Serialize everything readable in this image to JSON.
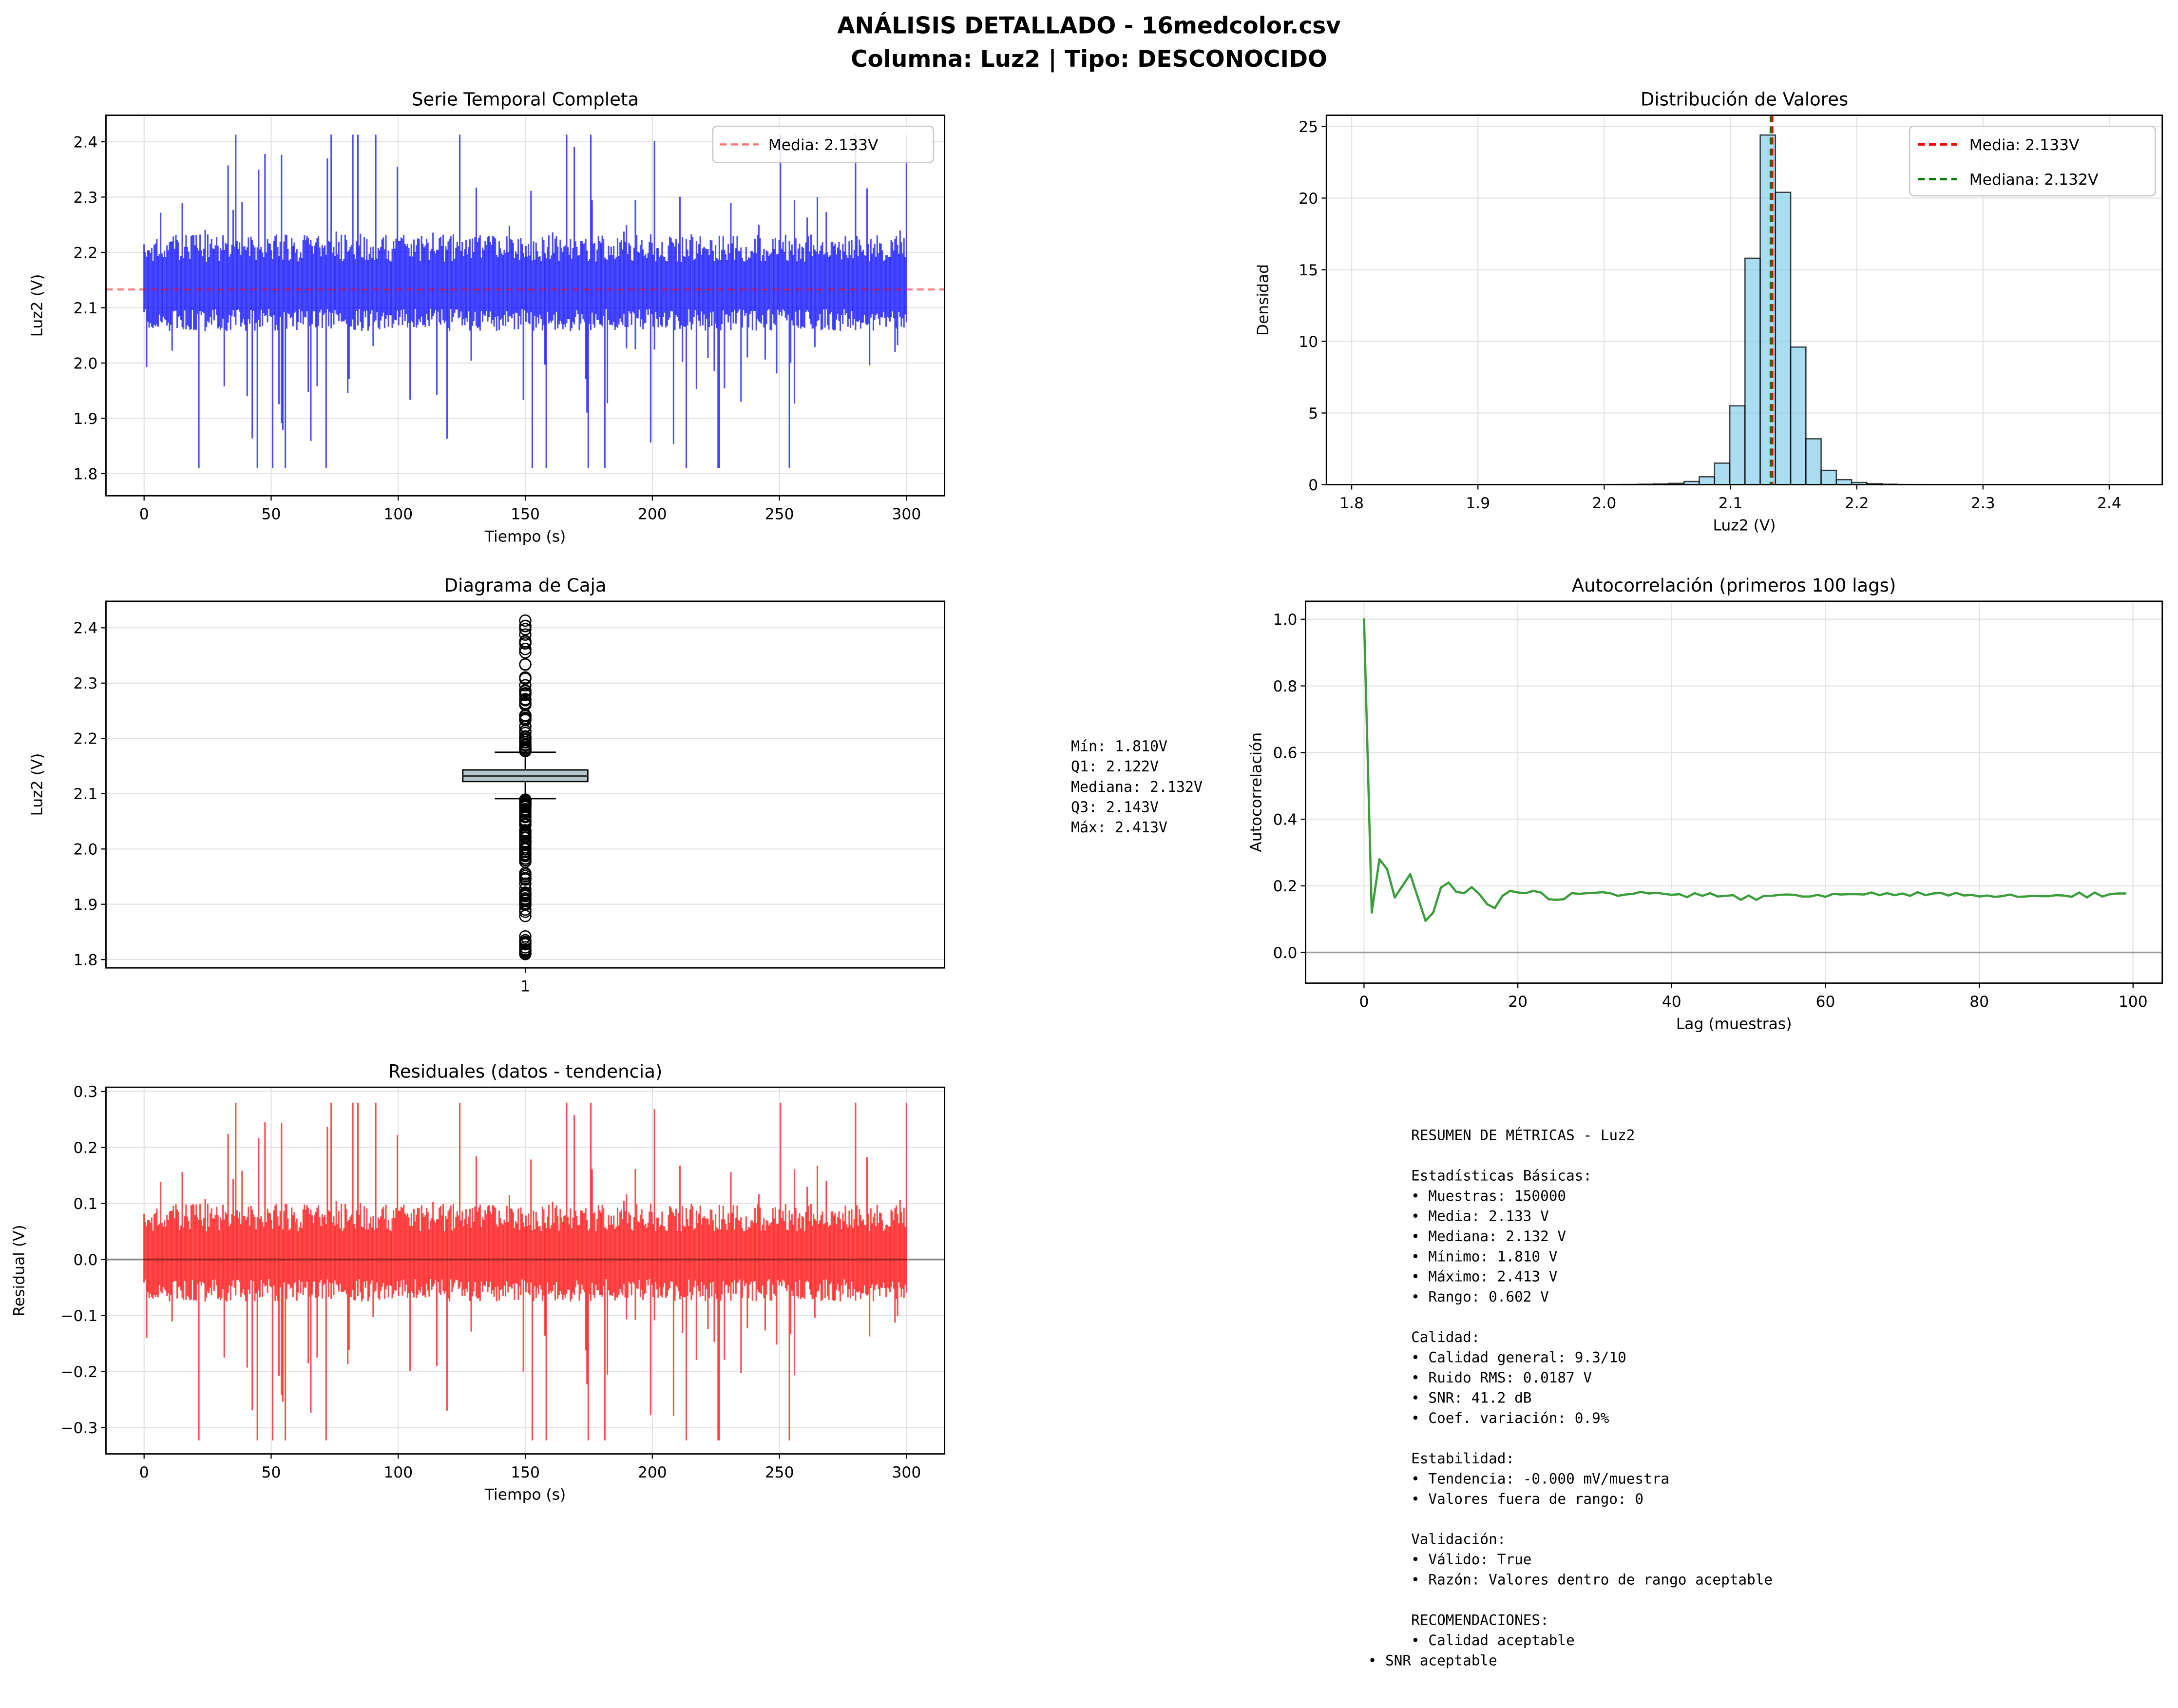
{
  "figure": {
    "title_line1": "ANÁLISIS DETALLADO - 16medcolor.csv",
    "title_line2": "Columna: Luz2 | Tipo: DESCONOCIDO"
  },
  "chart_data": [
    {
      "type": "line",
      "title": "Serie Temporal Completa",
      "xlabel": "Tiempo (s)",
      "ylabel": "Luz2 (V)",
      "xlim": [
        -15,
        315
      ],
      "ylim": [
        1.76,
        2.448
      ],
      "xticks": [
        0,
        50,
        100,
        150,
        200,
        250,
        300
      ],
      "xtick_labels": [
        "0",
        "50",
        "100",
        "150",
        "200",
        "250",
        "300"
      ],
      "yticks": [
        1.8,
        1.9,
        2.0,
        2.1,
        2.2,
        2.3,
        2.4
      ],
      "ytick_labels": [
        "1.8",
        "1.9",
        "2.0",
        "2.1",
        "2.2",
        "2.3",
        "2.4"
      ],
      "grid": true,
      "series_color": "#0000ff",
      "samples": 150000,
      "duration_s": 300,
      "mean": 2.133,
      "min": 1.81,
      "max": 2.413,
      "hline": {
        "value": 2.133,
        "color": "#ff0000",
        "style": "dashed"
      },
      "legend": {
        "position": "upper right",
        "entries": [
          {
            "label": "Media: 2.133V",
            "color": "#ff7070"
          }
        ]
      }
    },
    {
      "type": "bar",
      "title": "Distribución de Valores",
      "xlabel": "Luz2 (V)",
      "ylabel": "Densidad",
      "xlim": [
        1.78,
        2.442
      ],
      "ylim": [
        0,
        25.78
      ],
      "xticks": [
        1.8,
        1.9,
        2.0,
        2.1,
        2.2,
        2.3,
        2.4
      ],
      "xtick_labels": [
        "1.8",
        "1.9",
        "2.0",
        "2.1",
        "2.2",
        "2.3",
        "2.4"
      ],
      "yticks": [
        0,
        5,
        10,
        15,
        20,
        25
      ],
      "ytick_labels": [
        "0",
        "5",
        "10",
        "15",
        "20",
        "25"
      ],
      "grid": true,
      "bar_color": "#87ceeb",
      "bin_range": [
        1.81,
        2.413
      ],
      "bins": 50,
      "density": [
        0.005,
        0.005,
        0.004,
        0.004,
        0.004,
        0.004,
        0.005,
        0.004,
        0.004,
        0.005,
        0.005,
        0.005,
        0.006,
        0.006,
        0.008,
        0.01,
        0.012,
        0.015,
        0.03,
        0.05,
        0.09,
        0.22,
        0.55,
        1.5,
        5.5,
        15.8,
        24.4,
        20.4,
        9.6,
        3.2,
        1.0,
        0.35,
        0.15,
        0.07,
        0.03,
        0.012,
        0.01,
        0.008,
        0.006,
        0.005,
        0.005,
        0.004,
        0.004,
        0.004,
        0.004,
        0.004,
        0.003,
        0.003,
        0.003,
        0.004
      ],
      "vlines": [
        {
          "label": "Media: 2.133V",
          "value": 2.133,
          "color": "#ff0000"
        },
        {
          "label": "Mediana: 2.132V",
          "value": 2.132,
          "color": "#008000"
        }
      ],
      "legend": {
        "position": "upper right"
      }
    },
    {
      "type": "box",
      "title": "Diagrama de Caja",
      "xlabel": "",
      "ylabel": "Luz2 (V)",
      "xlim": [
        0.5,
        1.5
      ],
      "ylim": [
        1.785,
        2.448
      ],
      "xticks": [
        1
      ],
      "xtick_labels": [
        "1"
      ],
      "yticks": [
        1.8,
        1.9,
        2.0,
        2.1,
        2.2,
        2.3,
        2.4
      ],
      "ytick_labels": [
        "1.8",
        "1.9",
        "2.0",
        "2.1",
        "2.2",
        "2.3",
        "2.4"
      ],
      "grid": true,
      "box_color": "#b4c8cc",
      "stats": {
        "min": 1.81,
        "q1": 2.122,
        "median": 2.132,
        "q3": 2.143,
        "max": 2.413,
        "whisker_low": 2.091,
        "whisker_high": 2.175
      },
      "stats_text": [
        "Mín: 1.810V",
        "Q1: 2.122V",
        "Mediana: 2.132V",
        "Q3: 2.143V",
        "Máx: 2.413V"
      ]
    },
    {
      "type": "line",
      "title": "Autocorrelación (primeros 100 lags)",
      "xlabel": "Lag (muestras)",
      "ylabel": "Autocorrelación",
      "xlim": [
        -7.6,
        103.8
      ],
      "ylim": [
        -0.092,
        1.054
      ],
      "xticks": [
        0,
        20,
        40,
        60,
        80,
        100
      ],
      "xtick_labels": [
        "0",
        "20",
        "40",
        "60",
        "80",
        "100"
      ],
      "yticks": [
        0.0,
        0.2,
        0.4,
        0.6,
        0.8,
        1.0
      ],
      "ytick_labels": [
        "0.0",
        "0.2",
        "0.4",
        "0.6",
        "0.8",
        "1.0"
      ],
      "grid": true,
      "series_color": "#3a9e3a",
      "hline": {
        "value": 0,
        "color": "#888888"
      },
      "values": [
        1.0,
        0.12,
        0.28,
        0.25,
        0.165,
        0.2,
        0.235,
        0.165,
        0.095,
        0.12,
        0.195,
        0.21,
        0.182,
        0.178,
        0.196,
        0.175,
        0.145,
        0.133,
        0.17,
        0.185,
        0.18,
        0.178,
        0.185,
        0.18,
        0.16,
        0.158,
        0.16,
        0.178,
        0.176,
        0.178,
        0.179,
        0.181,
        0.178,
        0.17,
        0.174,
        0.176,
        0.182,
        0.177,
        0.179,
        0.176,
        0.173,
        0.175,
        0.166,
        0.178,
        0.17,
        0.178,
        0.168,
        0.17,
        0.172,
        0.158,
        0.171,
        0.158,
        0.17,
        0.17,
        0.173,
        0.174,
        0.173,
        0.168,
        0.168,
        0.173,
        0.167,
        0.176,
        0.174,
        0.175,
        0.175,
        0.174,
        0.18,
        0.172,
        0.178,
        0.172,
        0.177,
        0.17,
        0.181,
        0.172,
        0.177,
        0.179,
        0.171,
        0.179,
        0.171,
        0.173,
        0.168,
        0.171,
        0.167,
        0.169,
        0.174,
        0.167,
        0.168,
        0.17,
        0.169,
        0.169,
        0.172,
        0.171,
        0.167,
        0.18,
        0.165,
        0.18,
        0.168,
        0.175,
        0.177,
        0.177
      ]
    },
    {
      "type": "line",
      "title": "Residuales (datos - tendencia)",
      "xlabel": "Tiempo (s)",
      "ylabel": "Residual (V)",
      "xlim": [
        -15,
        315
      ],
      "ylim": [
        -0.347,
        0.3074
      ],
      "xticks": [
        0,
        50,
        100,
        150,
        200,
        250,
        300
      ],
      "xtick_labels": [
        "0",
        "50",
        "100",
        "150",
        "200",
        "250",
        "300"
      ],
      "yticks": [
        -0.3,
        -0.2,
        -0.1,
        0.0,
        0.1,
        0.2,
        0.3
      ],
      "ytick_labels": [
        "−0.3",
        "−0.2",
        "−0.1",
        "0.0",
        "0.1",
        "0.2",
        "0.3"
      ],
      "grid": true,
      "series_color": "#ff0000",
      "hline": {
        "value": 0,
        "color": "#000000"
      }
    }
  ],
  "metrics_summary": [
    "     RESUMEN DE MÉTRICAS - Luz2",
    "",
    "     Estadísticas Básicas:",
    "     • Muestras: 150000",
    "     • Media: 2.133 V",
    "     • Mediana: 2.132 V",
    "     • Mínimo: 1.810 V",
    "     • Máximo: 2.413 V",
    "     • Rango: 0.602 V",
    "",
    "     Calidad:",
    "     • Calidad general: 9.3/10",
    "     • Ruido RMS: 0.0187 V",
    "     • SNR: 41.2 dB",
    "     • Coef. variación: 0.9%",
    "",
    "     Estabilidad:",
    "     • Tendencia: -0.000 mV/muestra",
    "     • Valores fuera de rango: 0",
    "",
    "     Validación:",
    "     • Válido: True",
    "     • Razón: Valores dentro de rango aceptable",
    "",
    "     RECOMENDACIONES:",
    "     • Calidad aceptable",
    "• SNR aceptable"
  ]
}
